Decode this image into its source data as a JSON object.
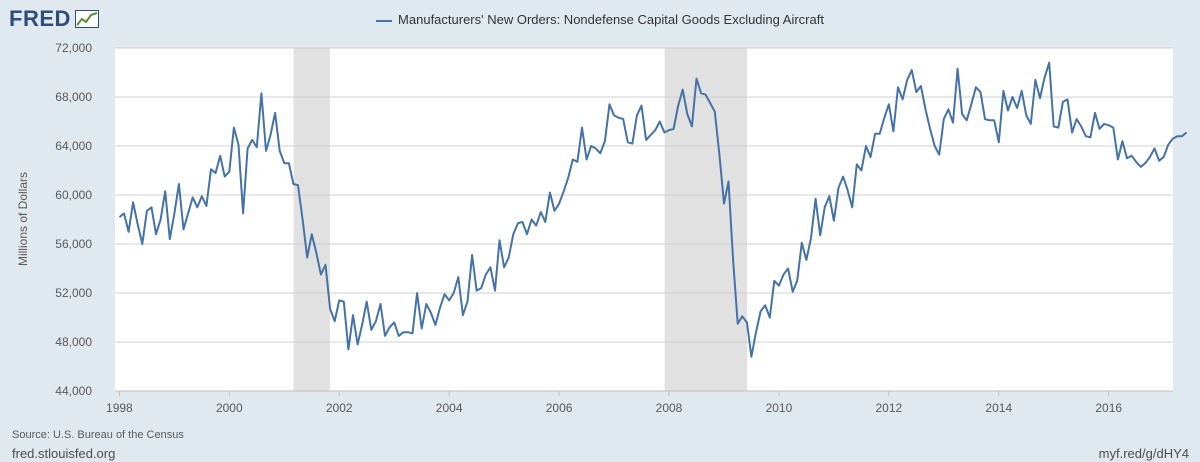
{
  "header": {
    "logo_text": "FRED",
    "logo_icon": "line-chart-icon",
    "legend_label": "Manufacturers' New Orders: Nondefense Capital Goods Excluding Aircraft"
  },
  "footer": {
    "source": "Source: U.S. Bureau of the Census",
    "site": "fred.stlouisfed.org",
    "short_url": "myf.red/g/dHY4"
  },
  "colors": {
    "line": "#4572a7",
    "recession": "#e1e1e1",
    "background": "#e1e9f0",
    "plot": "#ffffff",
    "logo": "#2f4d7a"
  },
  "chart_data": {
    "type": "line",
    "title": "",
    "xlabel": "",
    "ylabel": "Millions of Dollars",
    "xlim": [
      1997.92,
      2017.17
    ],
    "ylim": [
      44000,
      72000
    ],
    "y_ticks": [
      44000,
      48000,
      52000,
      56000,
      60000,
      64000,
      68000,
      72000
    ],
    "y_tick_labels": [
      "44,000",
      "48,000",
      "52,000",
      "56,000",
      "60,000",
      "64,000",
      "68,000",
      "72,000"
    ],
    "x_ticks": [
      1998,
      2000,
      2002,
      2004,
      2006,
      2008,
      2010,
      2012,
      2014,
      2016
    ],
    "x_tick_labels": [
      "1998",
      "2000",
      "2002",
      "2004",
      "2006",
      "2008",
      "2010",
      "2012",
      "2014",
      "2016"
    ],
    "grid": true,
    "legend_position": "top",
    "recessions": [
      [
        2001.17,
        2001.83
      ],
      [
        2007.92,
        2009.42
      ]
    ],
    "series": [
      {
        "name": "Manufacturers' New Orders: Nondefense Capital Goods Excluding Aircraft",
        "start": "1998-01",
        "frequency": "monthly",
        "values": [
          58200,
          58500,
          57000,
          59400,
          57600,
          56000,
          58700,
          59000,
          56800,
          58000,
          60300,
          56400,
          58500,
          60900,
          57200,
          58500,
          59800,
          59000,
          59900,
          59100,
          62100,
          61800,
          63200,
          61500,
          61900,
          65500,
          64100,
          58500,
          63800,
          64500,
          63900,
          68300,
          63600,
          64900,
          66700,
          63600,
          62600,
          62600,
          60900,
          60800,
          58000,
          54900,
          56800,
          55300,
          53500,
          54300,
          50700,
          49700,
          51400,
          51300,
          47400,
          50200,
          47800,
          49400,
          51300,
          49000,
          49700,
          51100,
          48500,
          49200,
          49600,
          48500,
          48800,
          48800,
          48700,
          52000,
          49100,
          51100,
          50400,
          49400,
          50800,
          51900,
          51400,
          52000,
          53300,
          50200,
          51300,
          55100,
          52200,
          52400,
          53500,
          54100,
          52200,
          56300,
          54100,
          54900,
          56800,
          57700,
          57800,
          56800,
          58000,
          57500,
          58600,
          57800,
          60200,
          58700,
          59300,
          60300,
          61400,
          62900,
          62700,
          65500,
          62900,
          64000,
          63800,
          63400,
          64400,
          67400,
          66500,
          66300,
          66200,
          64300,
          64200,
          66500,
          67300,
          64500,
          64900,
          65300,
          66000,
          65100,
          65300,
          65400,
          67300,
          68600,
          66600,
          65600,
          69500,
          68300,
          68200,
          67500,
          66800,
          63300,
          59300,
          61100,
          54700,
          49500,
          50100,
          49600,
          46800,
          48800,
          50500,
          51000,
          50000,
          53000,
          52600,
          53500,
          54000,
          52100,
          53000,
          56100,
          54700,
          56500,
          59700,
          56700,
          59000,
          59900,
          57900,
          60600,
          61500,
          60400,
          59000,
          62500,
          62000,
          64000,
          63100,
          65000,
          65000,
          66300,
          67400,
          65200,
          68800,
          67800,
          69400,
          70200,
          68400,
          68900,
          67000,
          65400,
          64000,
          63300,
          66200,
          67000,
          65900,
          70300,
          66600,
          66100,
          67400,
          68800,
          68400,
          66200,
          66100,
          66100,
          64300,
          68500,
          66900,
          68000,
          67100,
          68500,
          66500,
          65800,
          69400,
          67900,
          69600,
          70800,
          65600,
          65500,
          67600,
          67800,
          65100,
          66200,
          65600,
          64800,
          64700,
          66700,
          65400,
          65800,
          65700,
          65500,
          62900,
          64400,
          63000,
          63200,
          62700,
          62300,
          62600,
          63100,
          63800,
          62800,
          63100,
          64100,
          64600,
          64800,
          64800,
          65100
        ]
      }
    ]
  }
}
